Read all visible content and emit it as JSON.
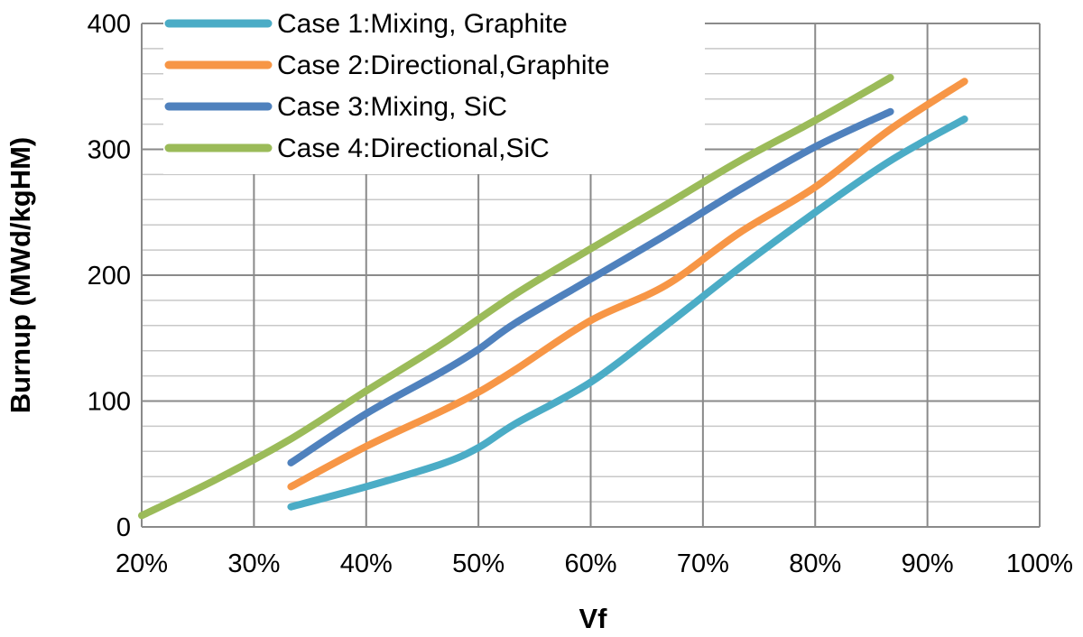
{
  "chart_data": {
    "type": "line",
    "title": "",
    "xlabel": "Vf",
    "ylabel": "Burnup (MWd/kgHM)",
    "xlim": [
      0.2,
      1.0
    ],
    "ylim": [
      0,
      400
    ],
    "x_ticks": [
      0.2,
      0.3,
      0.4,
      0.5,
      0.6,
      0.7,
      0.8,
      0.9,
      1.0
    ],
    "x_tick_labels": [
      "20%",
      "30%",
      "40%",
      "50%",
      "60%",
      "70%",
      "80%",
      "90%",
      "100%"
    ],
    "y_ticks": [
      0,
      100,
      200,
      300,
      400
    ],
    "y_tick_labels": [
      "0",
      "100",
      "200",
      "300",
      "400"
    ],
    "y_minor_step": 20,
    "grid": true,
    "legend_position": "top-left",
    "series": [
      {
        "name": "Case 1:Mixing, Graphite",
        "color": "#4bacc6",
        "points": [
          [
            0.333,
            16
          ],
          [
            0.4,
            32
          ],
          [
            0.467,
            50
          ],
          [
            0.5,
            63
          ],
          [
            0.533,
            82
          ],
          [
            0.6,
            115
          ],
          [
            0.667,
            160
          ],
          [
            0.733,
            206
          ],
          [
            0.8,
            250
          ],
          [
            0.867,
            291
          ],
          [
            0.933,
            324
          ]
        ]
      },
      {
        "name": "Case 2:Directional,Graphite",
        "color": "#f79646",
        "points": [
          [
            0.333,
            32
          ],
          [
            0.4,
            64
          ],
          [
            0.467,
            92
          ],
          [
            0.5,
            107
          ],
          [
            0.533,
            125
          ],
          [
            0.6,
            164
          ],
          [
            0.667,
            192
          ],
          [
            0.733,
            234
          ],
          [
            0.8,
            270
          ],
          [
            0.867,
            316
          ],
          [
            0.933,
            354
          ]
        ]
      },
      {
        "name": "Case 3:Mixing, SiC",
        "color": "#4f81bd",
        "points": [
          [
            0.333,
            51
          ],
          [
            0.4,
            90
          ],
          [
            0.467,
            123
          ],
          [
            0.5,
            141
          ],
          [
            0.533,
            162
          ],
          [
            0.6,
            197
          ],
          [
            0.667,
            232
          ],
          [
            0.733,
            268
          ],
          [
            0.8,
            302
          ],
          [
            0.867,
            330
          ]
        ]
      },
      {
        "name": "Case 4:Directional,SiC",
        "color": "#9bbb59",
        "points": [
          [
            0.2,
            9
          ],
          [
            0.267,
            38
          ],
          [
            0.333,
            70
          ],
          [
            0.4,
            108
          ],
          [
            0.467,
            145
          ],
          [
            0.533,
            185
          ],
          [
            0.6,
            221
          ],
          [
            0.667,
            256
          ],
          [
            0.733,
            291
          ],
          [
            0.8,
            323
          ],
          [
            0.867,
            357
          ]
        ]
      }
    ]
  }
}
